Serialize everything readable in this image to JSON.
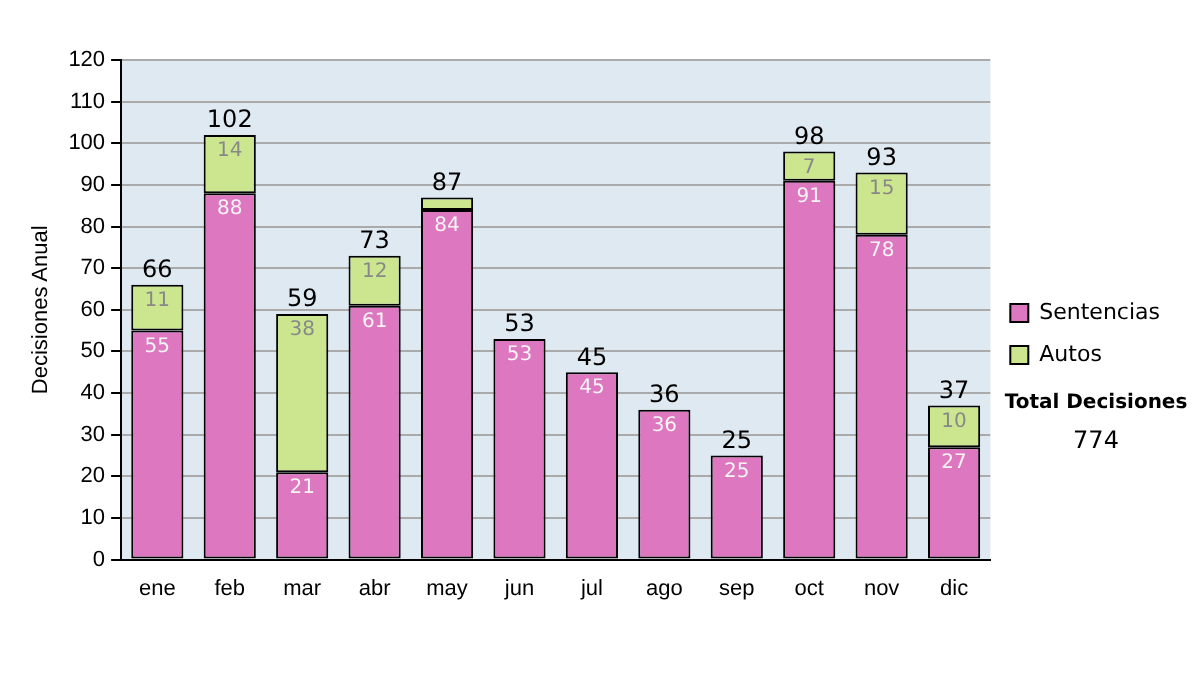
{
  "chart_data": {
    "type": "bar",
    "stacked": true,
    "ylabel": "Decisiones Anual",
    "categories": [
      "ene",
      "feb",
      "mar",
      "abr",
      "may",
      "jun",
      "jul",
      "ago",
      "sep",
      "oct",
      "nov",
      "dic"
    ],
    "series": [
      {
        "name": "Sentencias",
        "color": "#dd77c0",
        "values": [
          55,
          88,
          21,
          61,
          84,
          53,
          45,
          36,
          25,
          91,
          78,
          27
        ],
        "value_labels": [
          "55",
          "88",
          "21",
          "61",
          "84",
          "53",
          "45",
          "36",
          "25",
          "91",
          "78",
          "27"
        ]
      },
      {
        "name": "Autos",
        "color": "#cce68f",
        "values": [
          11,
          14,
          38,
          12,
          3,
          0,
          0,
          0,
          0,
          7,
          15,
          10
        ],
        "value_labels": [
          "11",
          "14",
          "38",
          "12",
          null,
          null,
          null,
          null,
          null,
          "7",
          "15",
          "10"
        ]
      }
    ],
    "totals": [
      "66",
      "102",
      "59",
      "73",
      "87",
      "53",
      "45",
      "36",
      "25",
      "98",
      "93",
      "37"
    ],
    "ylim": [
      0,
      120
    ],
    "yticks": [
      0,
      10,
      20,
      30,
      40,
      50,
      60,
      70,
      80,
      90,
      100,
      110,
      120
    ],
    "grid": "y",
    "legend": "right",
    "annotations": [
      "Total Decisiones",
      "774"
    ]
  }
}
